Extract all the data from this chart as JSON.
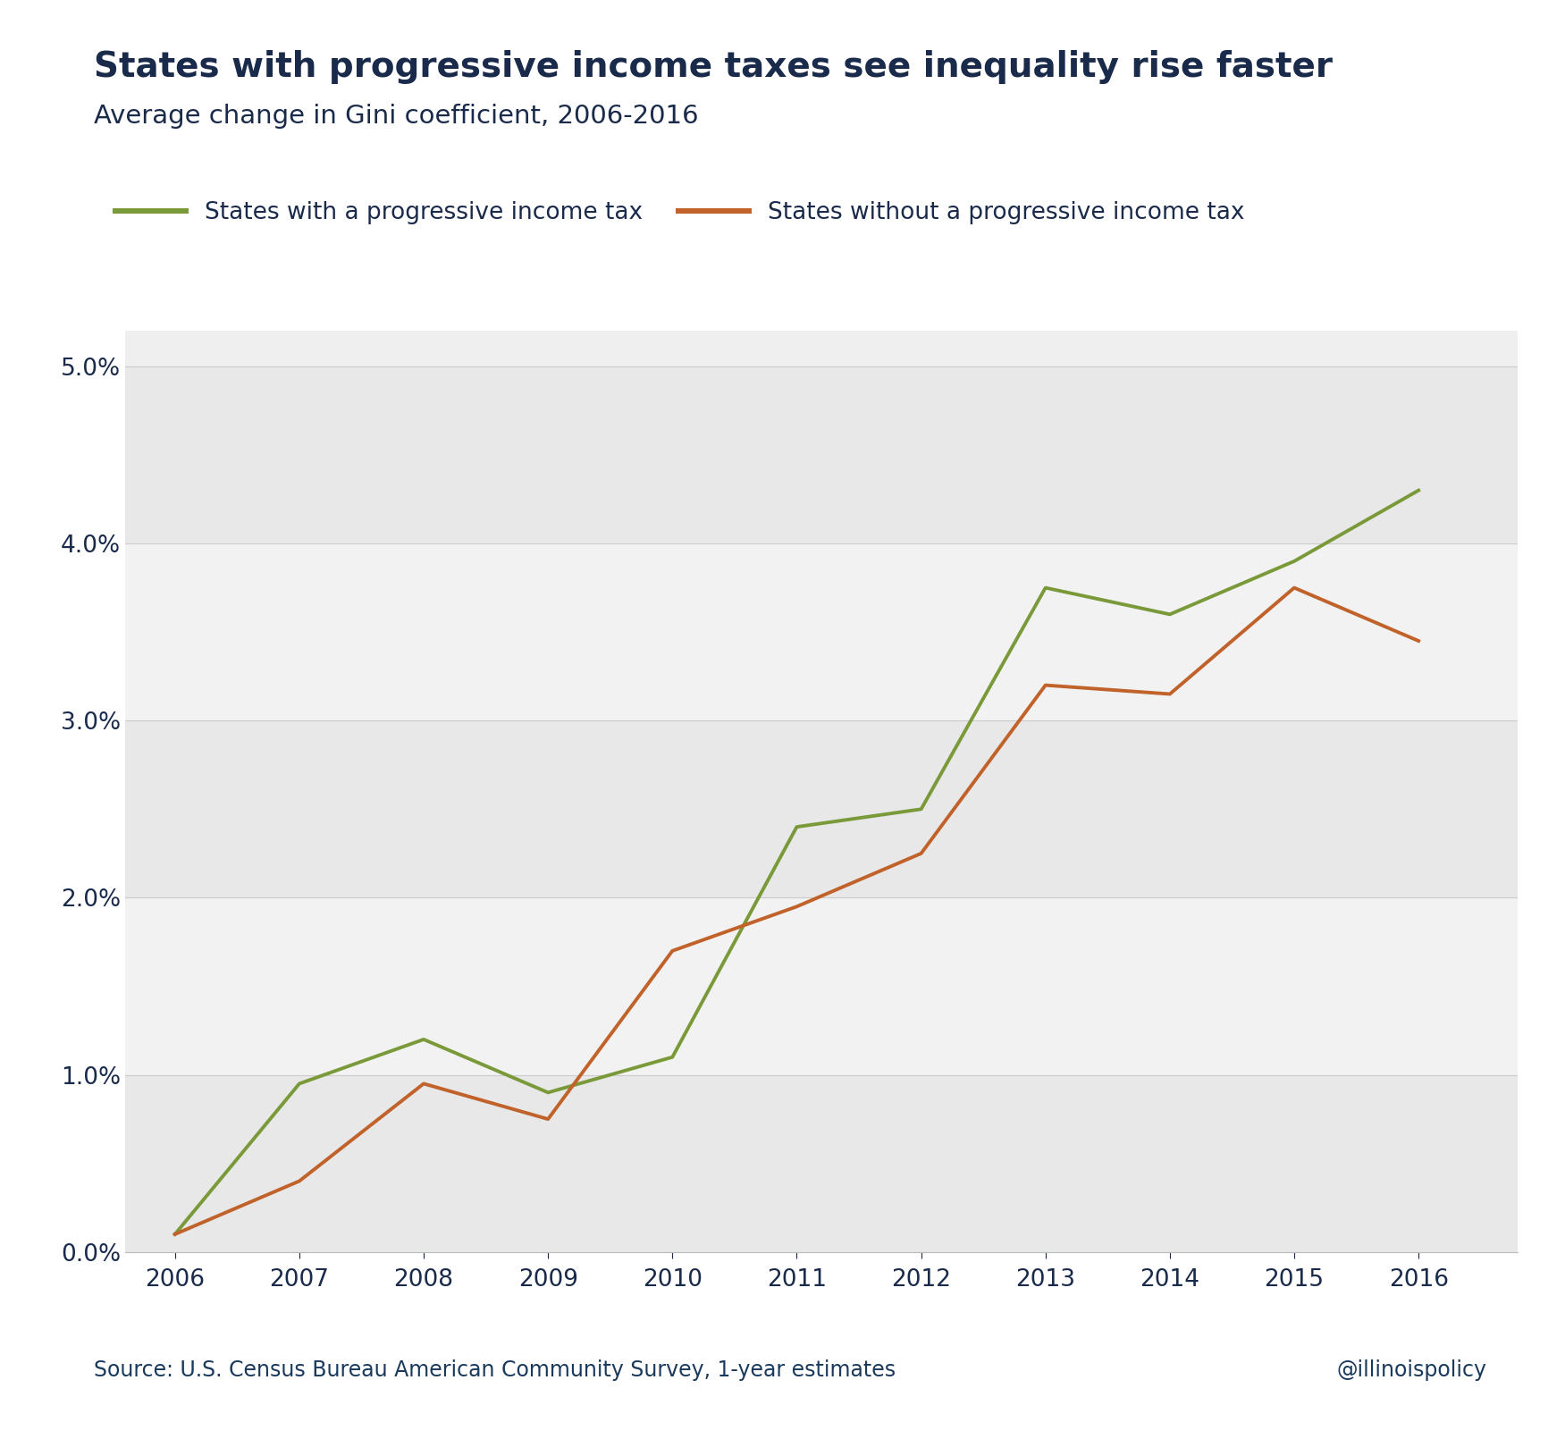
{
  "title": "States with progressive income taxes see inequality rise faster",
  "subtitle": "Average change in Gini coefficient, 2006-2016",
  "source": "Source: U.S. Census Bureau American Community Survey, 1-year estimates",
  "watermark": "@illinoispolicy",
  "years": [
    2006,
    2007,
    2008,
    2009,
    2010,
    2011,
    2012,
    2013,
    2014,
    2015,
    2016
  ],
  "progressive": [
    0.001,
    0.0095,
    0.012,
    0.009,
    0.011,
    0.024,
    0.025,
    0.0375,
    0.036,
    0.039,
    0.043
  ],
  "flat": [
    0.001,
    0.004,
    0.0095,
    0.0075,
    0.017,
    0.0195,
    0.0225,
    0.032,
    0.0315,
    0.0375,
    0.0345
  ],
  "progressive_color": "#7a9a3a",
  "flat_color": "#c0622a",
  "title_color": "#1a2a4a",
  "subtitle_color": "#1a2a4a",
  "source_color": "#1a3a5c",
  "watermark_color": "#1a3a5c",
  "plot_bg_color": "#efefef",
  "figure_background": "#ffffff",
  "band_light": "#e8e8e8",
  "band_dark": "#f2f2f2",
  "legend_label_progressive": "States with a progressive income tax",
  "legend_label_flat": "States without a progressive income tax",
  "ylim": [
    0.0,
    0.052
  ],
  "yticks": [
    0.0,
    0.01,
    0.02,
    0.03,
    0.04,
    0.05
  ],
  "line_width": 2.8,
  "title_fontsize": 28,
  "subtitle_fontsize": 21,
  "tick_fontsize": 19,
  "legend_fontsize": 19,
  "source_fontsize": 17
}
